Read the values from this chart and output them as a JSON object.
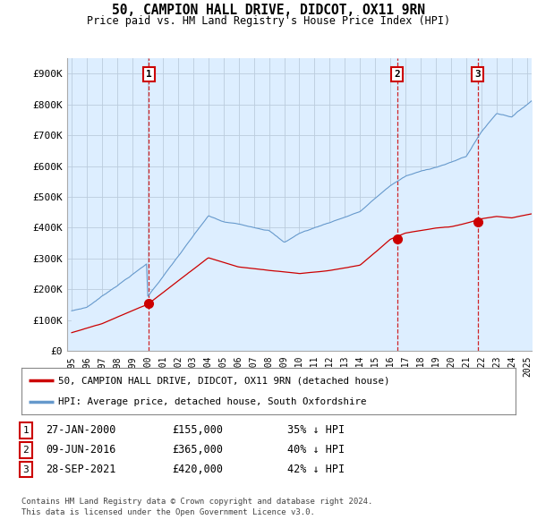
{
  "title": "50, CAMPION HALL DRIVE, DIDCOT, OX11 9RN",
  "subtitle": "Price paid vs. HM Land Registry's House Price Index (HPI)",
  "ylim": [
    0,
    950000
  ],
  "yticks": [
    0,
    100000,
    200000,
    300000,
    400000,
    500000,
    600000,
    700000,
    800000,
    900000
  ],
  "ytick_labels": [
    "£0",
    "£100K",
    "£200K",
    "£300K",
    "£400K",
    "£500K",
    "£600K",
    "£700K",
    "£800K",
    "£900K"
  ],
  "sale_color": "#cc0000",
  "hpi_color": "#6699cc",
  "hpi_fill_color": "#ddeeff",
  "sale_label": "50, CAMPION HALL DRIVE, DIDCOT, OX11 9RN (detached house)",
  "hpi_label": "HPI: Average price, detached house, South Oxfordshire",
  "chart_bg": "#ddeeff",
  "transactions": [
    {
      "date": "27-JAN-2000",
      "price": 155000,
      "price_str": "£155,000",
      "pct": "35%",
      "label": "1",
      "x": 2000.07
    },
    {
      "date": "09-JUN-2016",
      "price": 365000,
      "price_str": "£365,000",
      "pct": "40%",
      "label": "2",
      "x": 2016.44
    },
    {
      "date": "28-SEP-2021",
      "price": 420000,
      "price_str": "£420,000",
      "pct": "42%",
      "label": "3",
      "x": 2021.74
    }
  ],
  "footer_line1": "Contains HM Land Registry data © Crown copyright and database right 2024.",
  "footer_line2": "This data is licensed under the Open Government Licence v3.0.",
  "background_color": "#ffffff",
  "grid_color": "#bbccdd",
  "xmin": 1995.0,
  "xmax": 2025.3
}
